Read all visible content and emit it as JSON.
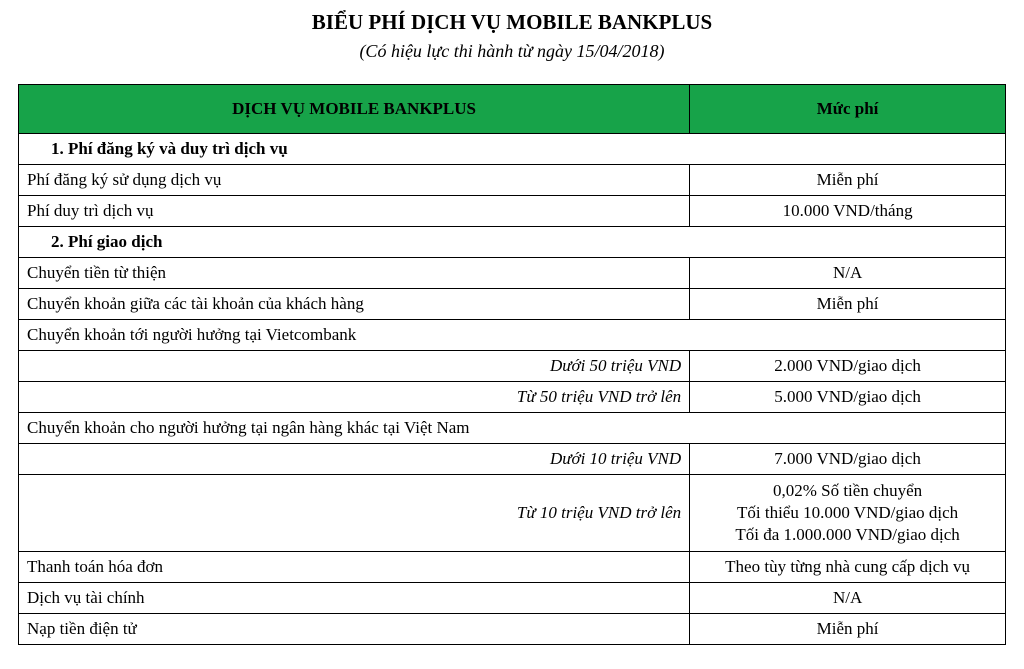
{
  "title": "BIỂU PHÍ DỊCH VỤ MOBILE BANKPLUS",
  "subtitle": "(Có hiệu lực thi hành từ ngày 15/04/2018)",
  "table": {
    "header_service": "DỊCH VỤ MOBILE BANKPLUS",
    "header_fee": "Mức phí",
    "header_bg": "#17a349",
    "border_color": "#000000",
    "rows": [
      {
        "type": "section",
        "label": "1.  Phí đăng ký và duy trì dịch vụ"
      },
      {
        "type": "item",
        "label": "Phí đăng ký sử dụng dịch vụ",
        "fee": "Miễn phí"
      },
      {
        "type": "item",
        "label": "Phí duy trì dịch vụ",
        "fee": "10.000 VND/tháng"
      },
      {
        "type": "section",
        "label": "2. Phí giao dịch"
      },
      {
        "type": "item",
        "label": "Chuyển tiền từ thiện",
        "fee": "N/A"
      },
      {
        "type": "item",
        "label": "Chuyển khoản giữa các tài khoản của khách hàng",
        "fee": "Miễn phí"
      },
      {
        "type": "span",
        "label": "Chuyển khoản tới người hưởng tại Vietcombank"
      },
      {
        "type": "subitem",
        "label": "Dưới 50 triệu VND",
        "fee": "2.000 VND/giao dịch"
      },
      {
        "type": "subitem",
        "label": "Từ 50 triệu VND trở lên",
        "fee": "5.000 VND/giao dịch"
      },
      {
        "type": "span",
        "label": "Chuyển khoản cho người hưởng tại ngân hàng khác tại Việt Nam"
      },
      {
        "type": "subitem",
        "label": "Dưới 10 triệu VND",
        "fee": "7.000 VND/giao dịch"
      },
      {
        "type": "subitem",
        "label": "Từ 10 triệu VND trở lên",
        "fee": "0,02% Số tiền chuyển\nTối thiểu 10.000 VND/giao dịch\nTối đa 1.000.000 VND/giao dịch"
      },
      {
        "type": "item",
        "label": "Thanh toán hóa đơn",
        "fee": "Theo tùy từng nhà cung cấp dịch vụ"
      },
      {
        "type": "item",
        "label": "Dịch vụ tài chính",
        "fee": "N/A"
      },
      {
        "type": "item",
        "label": "Nạp tiền điện tử",
        "fee": "Miễn phí"
      }
    ]
  }
}
